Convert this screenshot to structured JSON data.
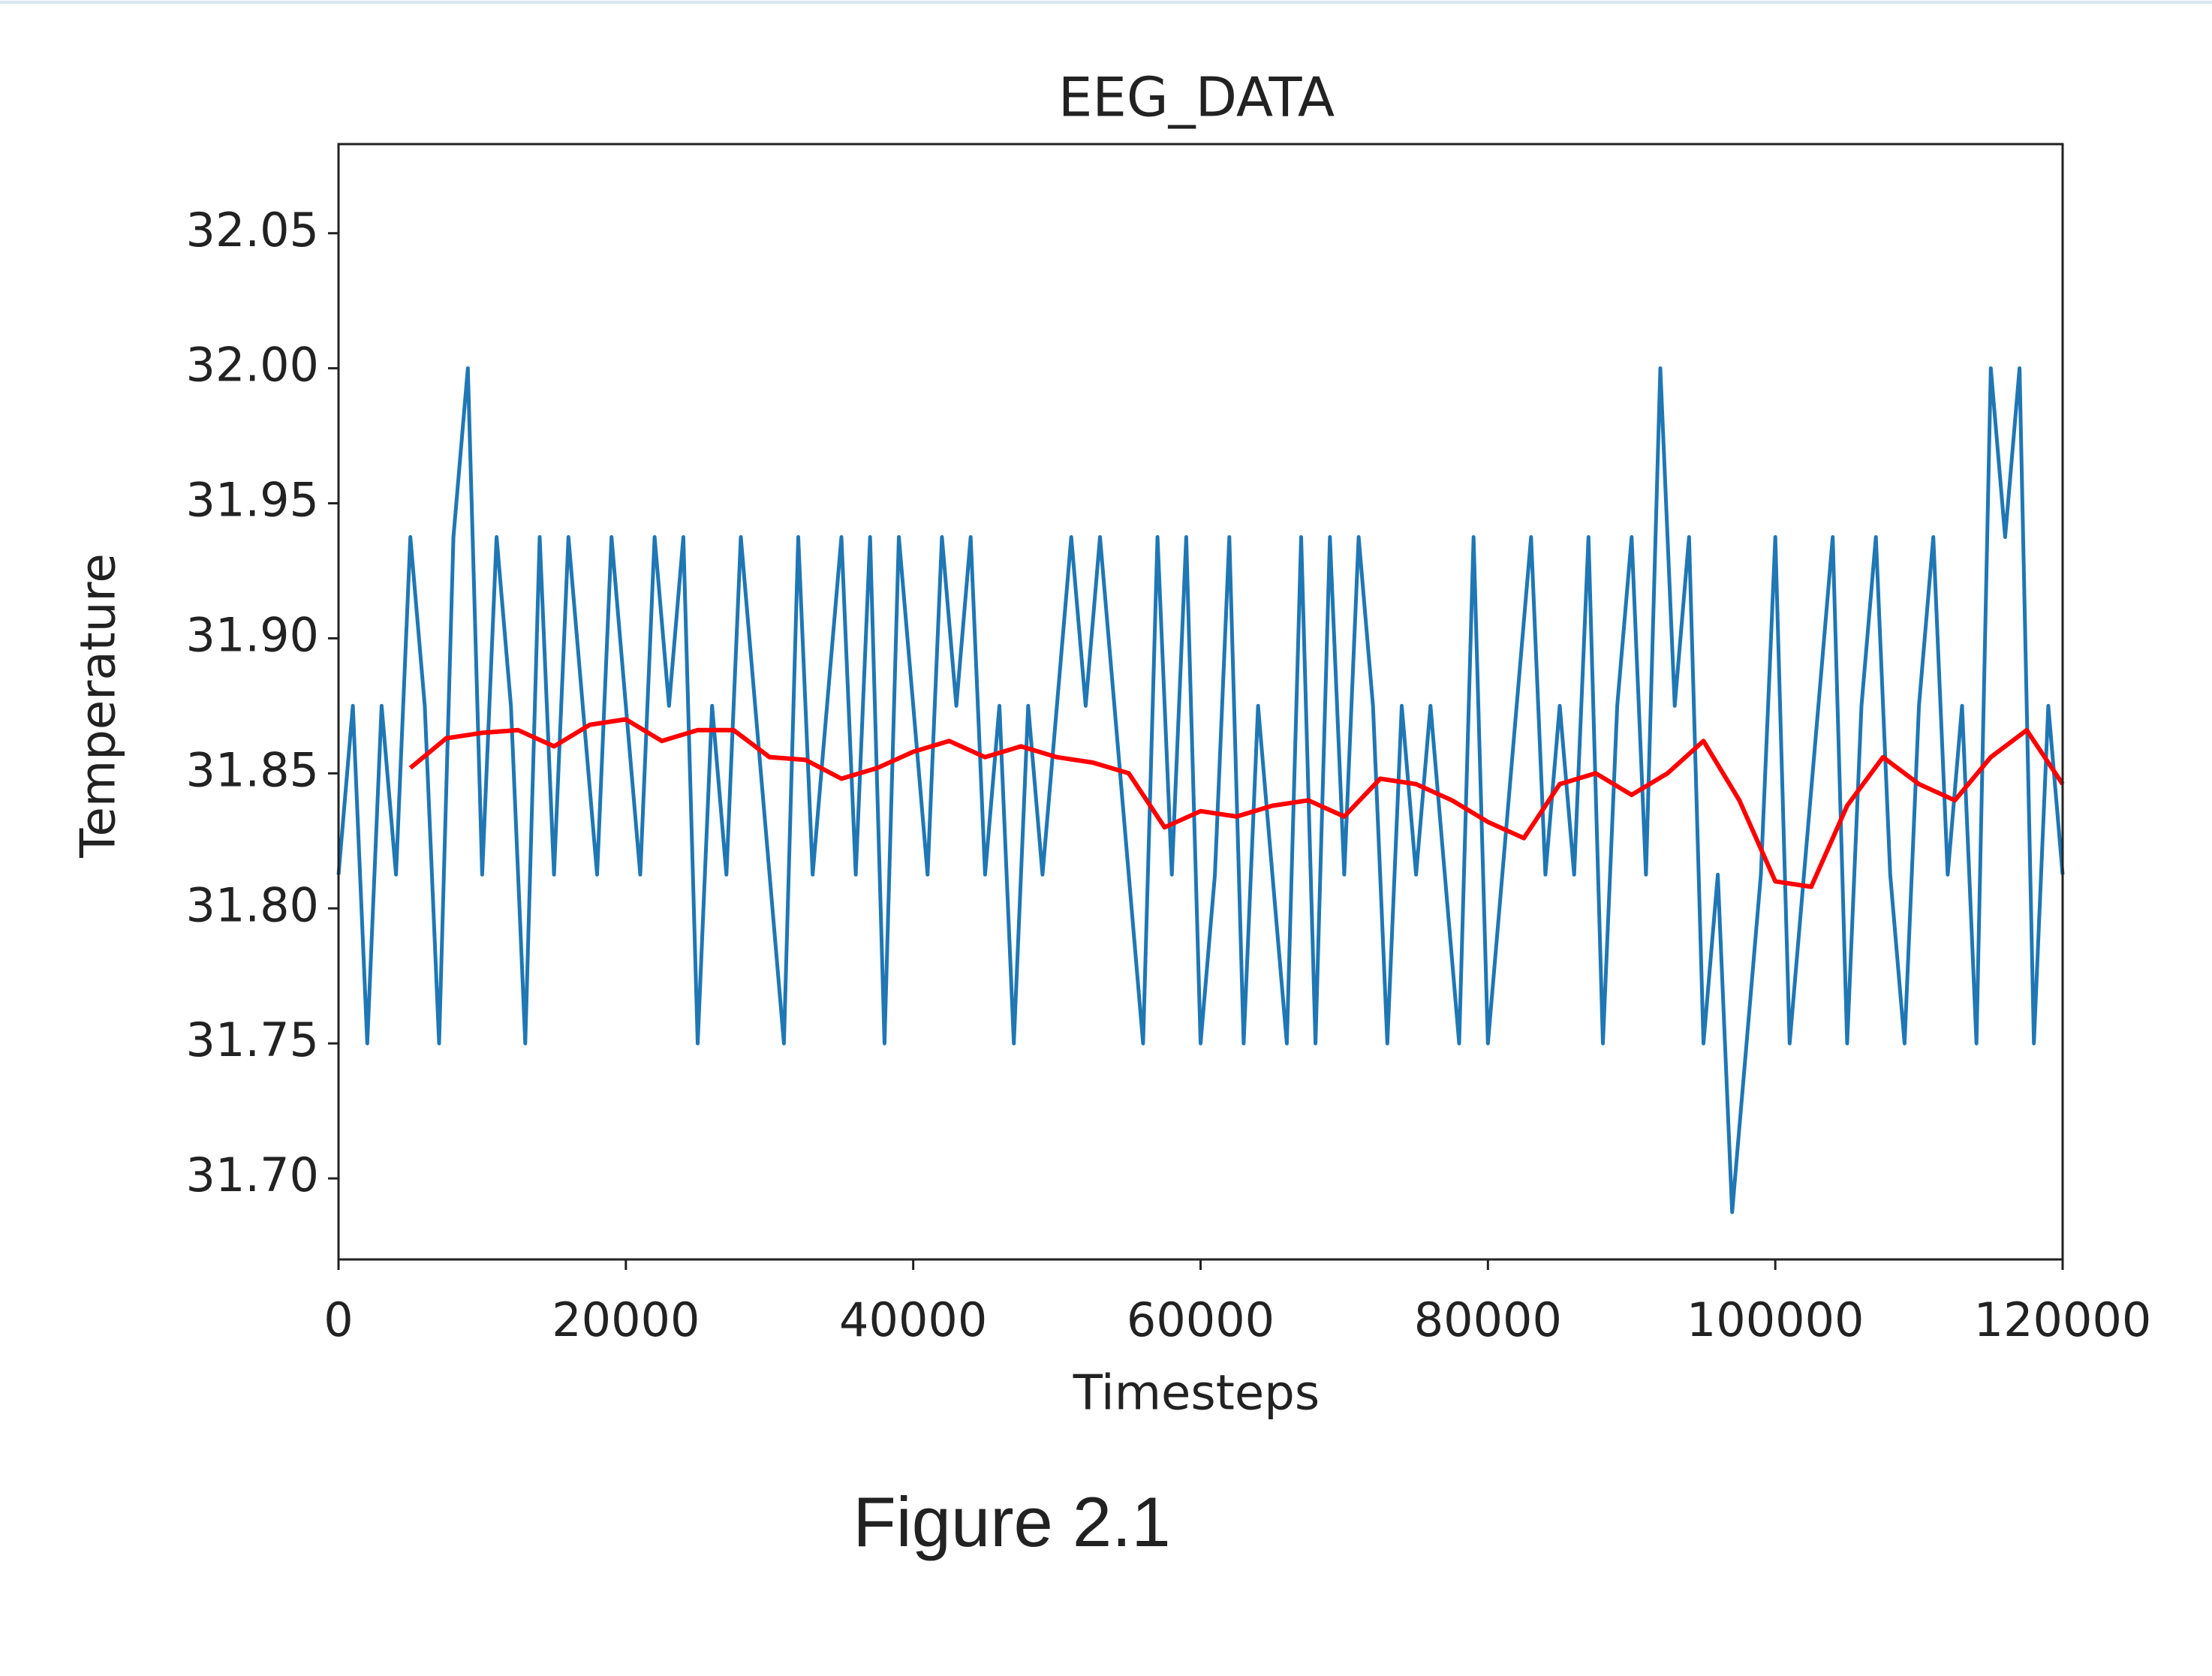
{
  "chart_data": {
    "type": "line",
    "title": "EEG_DATA",
    "xlabel": "Timesteps",
    "ylabel": "Temperature",
    "caption": "Figure 2.1",
    "xlim": [
      0,
      120000
    ],
    "xticks": [
      0,
      20000,
      40000,
      60000,
      80000,
      100000,
      120000
    ],
    "ylim": [
      31.67,
      32.083
    ],
    "yticks": [
      {
        "value": 31.7,
        "label": "31.70"
      },
      31.75,
      {
        "value": 31.8,
        "label": "31.80"
      },
      31.85,
      {
        "value": 31.9,
        "label": "31.90"
      },
      31.95,
      {
        "value": 32,
        "label": "32.00"
      },
      32.05
    ],
    "series": [
      {
        "color": "#1f77b4",
        "x": [
          0,
          1000,
          2000,
          3000,
          4000,
          5000,
          6000,
          7000,
          8000,
          9000,
          10000,
          11000,
          12000,
          13000,
          14000,
          15000,
          16000,
          17000,
          18000,
          19000,
          20000,
          21000,
          22000,
          23000,
          24000,
          25000,
          26000,
          27000,
          28000,
          29000,
          30000,
          31000,
          32000,
          33000,
          34000,
          35000,
          36000,
          37000,
          38000,
          39000,
          40000,
          41000,
          42000,
          43000,
          44000,
          45000,
          46000,
          47000,
          48000,
          49000,
          50000,
          51000,
          52000,
          53000,
          54000,
          55000,
          56000,
          57000,
          58000,
          59000,
          60000,
          61000,
          62000,
          63000,
          64000,
          65000,
          66000,
          67000,
          68000,
          69000,
          70000,
          71000,
          72000,
          73000,
          74000,
          75000,
          76000,
          77000,
          78000,
          79000,
          80000,
          81000,
          82000,
          83000,
          84000,
          85000,
          86000,
          87000,
          88000,
          89000,
          90000,
          91000,
          92000,
          93000,
          94000,
          95000,
          96000,
          97000,
          98000,
          99000,
          100000,
          101000,
          102000,
          103000,
          104000,
          105000,
          106000,
          107000,
          108000,
          109000,
          110000,
          111000,
          112000,
          113000,
          114000,
          115000,
          116000,
          117000,
          118000,
          119000,
          120000
        ],
        "values": [
          31.8125,
          31.875,
          31.75,
          31.875,
          31.8125,
          31.9375,
          31.875,
          31.75,
          31.9375,
          32.0,
          31.8125,
          31.9375,
          31.875,
          31.75,
          31.9375,
          31.8125,
          31.9375,
          31.875,
          31.8125,
          31.9375,
          31.875,
          31.8125,
          31.9375,
          31.875,
          31.9375,
          31.75,
          31.875,
          31.8125,
          31.9375,
          31.875,
          31.8125,
          31.75,
          31.9375,
          31.8125,
          31.875,
          31.9375,
          31.8125,
          31.9375,
          31.75,
          31.9375,
          31.875,
          31.8125,
          31.9375,
          31.875,
          31.9375,
          31.8125,
          31.875,
          31.75,
          31.875,
          31.8125,
          31.875,
          31.9375,
          31.875,
          31.9375,
          31.875,
          31.8125,
          31.75,
          31.9375,
          31.8125,
          31.9375,
          31.75,
          31.8125,
          31.9375,
          31.75,
          31.875,
          31.8125,
          31.75,
          31.9375,
          31.75,
          31.9375,
          31.8125,
          31.9375,
          31.875,
          31.75,
          31.875,
          31.8125,
          31.875,
          31.8125,
          31.75,
          31.9375,
          31.75,
          31.8125,
          31.875,
          31.9375,
          31.8125,
          31.875,
          31.8125,
          31.9375,
          31.75,
          31.875,
          31.9375,
          31.8125,
          32.0,
          31.875,
          31.9375,
          31.75,
          31.8125,
          31.6875,
          31.75,
          31.8125,
          31.9375,
          31.75,
          31.8125,
          31.875,
          31.9375,
          31.75,
          31.875,
          31.9375,
          31.8125,
          31.75,
          31.875,
          31.9375,
          31.8125,
          31.875,
          31.75,
          32.0,
          31.9375,
          32.0,
          31.75,
          31.875,
          31.8125
        ]
      },
      {
        "color": "#ff0000",
        "x": [
          5000,
          7500,
          10000,
          12500,
          15000,
          17500,
          20000,
          22500,
          25000,
          27500,
          30000,
          32500,
          35000,
          37500,
          40000,
          42500,
          45000,
          47500,
          50000,
          52500,
          55000,
          57500,
          60000,
          62500,
          65000,
          67500,
          70000,
          72500,
          75000,
          77500,
          80000,
          82500,
          85000,
          87500,
          90000,
          92500,
          95000,
          97500,
          100000,
          102500,
          105000,
          107500,
          110000,
          112500,
          115000,
          117500,
          120000
        ],
        "values": [
          31.852,
          31.863,
          31.865,
          31.866,
          31.86,
          31.868,
          31.87,
          31.862,
          31.866,
          31.866,
          31.856,
          31.855,
          31.848,
          31.852,
          31.858,
          31.862,
          31.856,
          31.86,
          31.856,
          31.854,
          31.85,
          31.83,
          31.836,
          31.834,
          31.838,
          31.84,
          31.834,
          31.848,
          31.846,
          31.84,
          31.832,
          31.826,
          31.846,
          31.85,
          31.842,
          31.85,
          31.862,
          31.84,
          31.81,
          31.808,
          31.838,
          31.856,
          31.846,
          31.84,
          31.856,
          31.866,
          31.846
        ]
      }
    ]
  }
}
